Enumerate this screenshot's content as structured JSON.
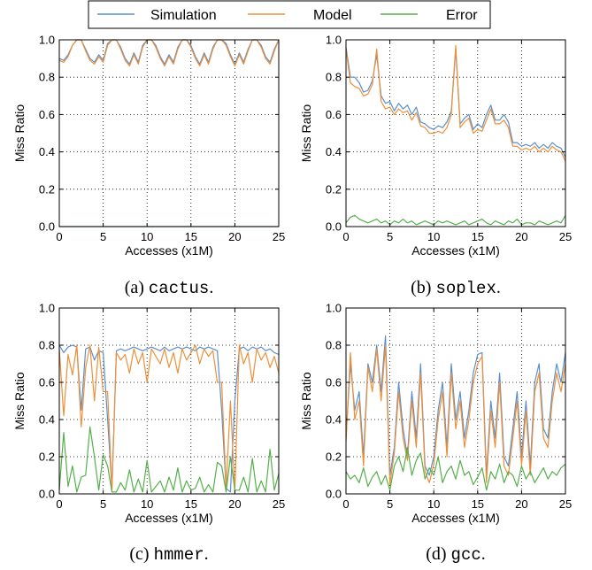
{
  "legend": {
    "entries": [
      {
        "label": "Simulation",
        "color": "#5b8fcc"
      },
      {
        "label": "Model",
        "color": "#ee8f3a"
      },
      {
        "label": "Error",
        "color": "#55b04b"
      }
    ]
  },
  "chart_data": [
    {
      "type": "line",
      "caption_prefix": "(a) ",
      "caption_name": "cactus",
      "caption_suffix": ".",
      "xlabel": "Accesses (x1M)",
      "ylabel": "Miss Ratio",
      "xlim": [
        0,
        25
      ],
      "ylim": [
        0,
        1.0
      ],
      "xticks": [
        0,
        5,
        10,
        15,
        20,
        25
      ],
      "yticks": [
        0.0,
        0.2,
        0.4,
        0.6,
        0.8,
        1.0
      ],
      "grid": true,
      "x": [
        0,
        0.5,
        1,
        1.5,
        2,
        2.5,
        3,
        3.5,
        4,
        4.5,
        5,
        5.5,
        6,
        6.5,
        7,
        7.5,
        8,
        8.5,
        9,
        9.5,
        10,
        10.5,
        11,
        11.5,
        12,
        12.5,
        13,
        13.5,
        14,
        14.5,
        15,
        15.5,
        16,
        16.5,
        17,
        17.5,
        18,
        18.5,
        19,
        19.5,
        20,
        20.5,
        21,
        21.5,
        22,
        22.5,
        23,
        23.5,
        24,
        24.5,
        25
      ],
      "series": [
        {
          "name": "Simulation",
          "values": [
            0.9,
            0.89,
            0.92,
            0.97,
            1.0,
            1.0,
            0.95,
            0.9,
            0.88,
            0.92,
            0.89,
            0.98,
            1.0,
            1.0,
            0.96,
            0.9,
            0.87,
            0.93,
            0.88,
            0.97,
            1.0,
            1.0,
            0.97,
            0.91,
            0.87,
            0.92,
            0.88,
            0.96,
            1.0,
            1.0,
            0.97,
            0.91,
            0.87,
            0.93,
            0.88,
            0.96,
            1.0,
            1.0,
            0.98,
            0.92,
            0.87,
            0.93,
            0.88,
            0.95,
            1.0,
            1.0,
            0.97,
            0.91,
            0.88,
            0.95,
            1.0
          ]
        },
        {
          "name": "Model",
          "values": [
            0.89,
            0.88,
            0.91,
            0.97,
            1.0,
            1.0,
            0.94,
            0.89,
            0.87,
            0.91,
            0.88,
            0.97,
            1.0,
            1.0,
            0.95,
            0.89,
            0.86,
            0.92,
            0.87,
            0.96,
            1.0,
            1.0,
            0.96,
            0.9,
            0.86,
            0.91,
            0.87,
            0.95,
            1.0,
            1.0,
            0.96,
            0.9,
            0.86,
            0.92,
            0.87,
            0.95,
            1.0,
            1.0,
            0.97,
            0.91,
            0.86,
            0.92,
            0.87,
            0.94,
            1.0,
            1.0,
            0.96,
            0.9,
            0.87,
            0.94,
            1.0
          ]
        },
        {
          "name": "Error",
          "values": [
            0.0,
            0.0,
            0.0,
            0.0,
            0.0,
            0.0,
            0.0,
            0.0,
            0.0,
            0.0,
            0.0,
            0.0,
            0.0,
            0.0,
            0.0,
            0.0,
            0.0,
            0.0,
            0.0,
            0.0,
            0.0,
            0.0,
            0.0,
            0.0,
            0.0,
            0.0,
            0.0,
            0.0,
            0.0,
            0.0,
            0.0,
            0.0,
            0.0,
            0.0,
            0.0,
            0.0,
            0.0,
            0.0,
            0.0,
            0.0,
            0.0,
            0.0,
            0.0,
            0.0,
            0.0,
            0.0,
            0.0,
            0.0,
            0.0,
            0.0,
            0.0
          ]
        }
      ]
    },
    {
      "type": "line",
      "caption_prefix": "(b) ",
      "caption_name": "soplex",
      "caption_suffix": ".",
      "xlabel": "Accesses (x1M)",
      "ylabel": "Miss Ratio",
      "xlim": [
        0,
        25
      ],
      "ylim": [
        0,
        1.0
      ],
      "xticks": [
        0,
        5,
        10,
        15,
        20,
        25
      ],
      "yticks": [
        0.0,
        0.2,
        0.4,
        0.6,
        0.8,
        1.0
      ],
      "grid": true,
      "x": [
        0,
        0.5,
        1,
        1.5,
        2,
        2.5,
        3,
        3.5,
        4,
        4.5,
        5,
        5.5,
        6,
        6.5,
        7,
        7.5,
        8,
        8.5,
        9,
        9.5,
        10,
        10.5,
        11,
        11.5,
        12,
        12.5,
        13,
        13.5,
        14,
        14.5,
        15,
        15.5,
        16,
        16.5,
        17,
        17.5,
        18,
        18.5,
        19,
        19.5,
        20,
        20.5,
        21,
        21.5,
        22,
        22.5,
        23,
        23.5,
        24,
        24.5,
        25
      ],
      "series": [
        {
          "name": "Simulation",
          "values": [
            0.96,
            0.8,
            0.8,
            0.77,
            0.72,
            0.73,
            0.78,
            0.92,
            0.7,
            0.66,
            0.67,
            0.62,
            0.66,
            0.63,
            0.65,
            0.6,
            0.64,
            0.56,
            0.55,
            0.53,
            0.52,
            0.54,
            0.53,
            0.56,
            0.62,
            0.95,
            0.55,
            0.58,
            0.6,
            0.52,
            0.55,
            0.53,
            0.6,
            0.65,
            0.57,
            0.57,
            0.6,
            0.56,
            0.45,
            0.45,
            0.43,
            0.44,
            0.43,
            0.45,
            0.42,
            0.44,
            0.42,
            0.45,
            0.43,
            0.42,
            0.37
          ]
        },
        {
          "name": "Model",
          "values": [
            0.95,
            0.77,
            0.75,
            0.74,
            0.7,
            0.71,
            0.76,
            0.95,
            0.67,
            0.63,
            0.64,
            0.6,
            0.63,
            0.61,
            0.62,
            0.57,
            0.61,
            0.54,
            0.53,
            0.5,
            0.5,
            0.51,
            0.5,
            0.53,
            0.6,
            0.97,
            0.53,
            0.56,
            0.58,
            0.5,
            0.52,
            0.51,
            0.57,
            0.63,
            0.55,
            0.55,
            0.57,
            0.53,
            0.43,
            0.43,
            0.41,
            0.42,
            0.41,
            0.43,
            0.4,
            0.42,
            0.4,
            0.43,
            0.41,
            0.4,
            0.35
          ]
        },
        {
          "name": "Error",
          "values": [
            0.02,
            0.05,
            0.06,
            0.04,
            0.03,
            0.02,
            0.03,
            0.04,
            0.02,
            0.03,
            0.01,
            0.03,
            0.02,
            0.04,
            0.02,
            0.03,
            0.01,
            0.02,
            0.03,
            0.02,
            0.01,
            0.03,
            0.02,
            0.03,
            0.02,
            0.01,
            0.02,
            0.03,
            0.01,
            0.02,
            0.03,
            0.04,
            0.02,
            0.01,
            0.03,
            0.02,
            0.01,
            0.03,
            0.02,
            0.04,
            0.01,
            0.02,
            0.02,
            0.01,
            0.03,
            0.02,
            0.01,
            0.02,
            0.03,
            0.02,
            0.06
          ]
        }
      ]
    },
    {
      "type": "line",
      "caption_prefix": "(c) ",
      "caption_name": "hmmer",
      "caption_suffix": ".",
      "xlabel": "Accesses (x1M)",
      "ylabel": "Miss Ratio",
      "xlim": [
        0,
        25
      ],
      "ylim": [
        0,
        1.0
      ],
      "xticks": [
        0,
        5,
        10,
        15,
        20,
        25
      ],
      "yticks": [
        0.0,
        0.2,
        0.4,
        0.6,
        0.8,
        1.0
      ],
      "grid": true,
      "x": [
        0,
        0.5,
        1,
        1.5,
        2,
        2.5,
        3,
        3.5,
        4,
        4.5,
        5,
        5.5,
        6,
        6.5,
        7,
        7.5,
        8,
        8.5,
        9,
        9.5,
        10,
        10.5,
        11,
        11.5,
        12,
        12.5,
        13,
        13.5,
        14,
        14.5,
        15,
        15.5,
        16,
        16.5,
        17,
        17.5,
        18,
        18.5,
        19,
        19.5,
        20,
        20.5,
        21,
        21.5,
        22,
        22.5,
        23,
        23.5,
        24,
        24.5,
        25
      ],
      "series": [
        {
          "name": "Simulation",
          "values": [
            0.8,
            0.76,
            0.79,
            0.8,
            0.79,
            0.45,
            0.78,
            0.79,
            0.72,
            0.77,
            0.76,
            0.4,
            0.03,
            0.77,
            0.78,
            0.77,
            0.78,
            0.79,
            0.78,
            0.77,
            0.78,
            0.79,
            0.78,
            0.77,
            0.79,
            0.77,
            0.78,
            0.79,
            0.78,
            0.79,
            0.78,
            0.77,
            0.79,
            0.78,
            0.79,
            0.78,
            0.77,
            0.45,
            0.03,
            0.01,
            0.5,
            0.78,
            0.79,
            0.77,
            0.79,
            0.78,
            0.79,
            0.77,
            0.78,
            0.76,
            0.75
          ]
        },
        {
          "name": "Model",
          "values": [
            0.78,
            0.42,
            0.75,
            0.64,
            0.8,
            0.36,
            0.68,
            0.8,
            0.5,
            0.79,
            0.55,
            0.55,
            0.02,
            0.76,
            0.72,
            0.75,
            0.65,
            0.78,
            0.7,
            0.76,
            0.6,
            0.78,
            0.74,
            0.7,
            0.78,
            0.68,
            0.76,
            0.65,
            0.78,
            0.72,
            0.76,
            0.8,
            0.7,
            0.78,
            0.74,
            0.77,
            0.6,
            0.6,
            0.03,
            0.5,
            0.01,
            0.8,
            0.7,
            0.76,
            0.6,
            0.78,
            0.72,
            0.76,
            0.68,
            0.74,
            0.65
          ]
        },
        {
          "name": "Error",
          "values": [
            0.02,
            0.33,
            0.04,
            0.15,
            0.01,
            0.09,
            0.1,
            0.36,
            0.2,
            0.02,
            0.21,
            0.15,
            0.01,
            0.01,
            0.06,
            0.02,
            0.13,
            0.01,
            0.08,
            0.01,
            0.18,
            0.01,
            0.04,
            0.07,
            0.01,
            0.09,
            0.02,
            0.14,
            0.01,
            0.07,
            0.02,
            0.03,
            0.09,
            0.01,
            0.05,
            0.01,
            0.17,
            0.15,
            0.01,
            0.2,
            0.02,
            0.02,
            0.09,
            0.01,
            0.19,
            0.01,
            0.07,
            0.01,
            0.24,
            0.02,
            0.11
          ]
        }
      ]
    },
    {
      "type": "line",
      "caption_prefix": "(d) ",
      "caption_name": "gcc",
      "caption_suffix": ".",
      "xlabel": "Accesses (x1M)",
      "ylabel": "Miss Ratio",
      "xlim": [
        0,
        25
      ],
      "ylim": [
        0,
        1.0
      ],
      "xticks": [
        0,
        5,
        10,
        15,
        20,
        25
      ],
      "yticks": [
        0.0,
        0.2,
        0.4,
        0.6,
        0.8,
        1.0
      ],
      "grid": true,
      "x": [
        0,
        0.5,
        1,
        1.5,
        2,
        2.5,
        3,
        3.5,
        4,
        4.5,
        5,
        5.5,
        6,
        6.5,
        7,
        7.5,
        8,
        8.5,
        9,
        9.5,
        10,
        10.5,
        11,
        11.5,
        12,
        12.5,
        13,
        13.5,
        14,
        14.5,
        15,
        15.5,
        16,
        16.5,
        17,
        17.5,
        18,
        18.5,
        19,
        19.5,
        20,
        20.5,
        21,
        21.5,
        22,
        22.5,
        23,
        23.5,
        24,
        24.5,
        25
      ],
      "series": [
        {
          "name": "Simulation",
          "values": [
            0.3,
            0.7,
            0.45,
            0.55,
            0.2,
            0.7,
            0.6,
            0.8,
            0.55,
            0.85,
            0.1,
            0.25,
            0.6,
            0.35,
            0.2,
            0.55,
            0.3,
            0.7,
            0.15,
            0.1,
            0.2,
            0.45,
            0.6,
            0.25,
            0.7,
            0.4,
            0.55,
            0.3,
            0.45,
            0.65,
            0.75,
            0.76,
            0.1,
            0.5,
            0.3,
            0.65,
            0.2,
            0.15,
            0.35,
            0.55,
            0.2,
            0.5,
            0.15,
            0.6,
            0.7,
            0.35,
            0.3,
            0.55,
            0.7,
            0.6,
            0.76
          ]
        },
        {
          "name": "Model",
          "values": [
            0.28,
            0.76,
            0.4,
            0.5,
            0.15,
            0.68,
            0.55,
            0.78,
            0.5,
            0.8,
            0.05,
            0.22,
            0.55,
            0.3,
            0.18,
            0.5,
            0.25,
            0.65,
            0.12,
            0.06,
            0.16,
            0.4,
            0.55,
            0.2,
            0.65,
            0.35,
            0.5,
            0.25,
            0.4,
            0.6,
            0.7,
            0.74,
            0.06,
            0.45,
            0.25,
            0.6,
            0.15,
            0.1,
            0.3,
            0.5,
            0.15,
            0.45,
            0.1,
            0.55,
            0.65,
            0.3,
            0.25,
            0.5,
            0.65,
            0.55,
            0.7
          ]
        },
        {
          "name": "Error",
          "values": [
            0.12,
            0.08,
            0.1,
            0.06,
            0.14,
            0.04,
            0.09,
            0.12,
            0.05,
            0.1,
            0.02,
            0.15,
            0.2,
            0.12,
            0.25,
            0.1,
            0.18,
            0.22,
            0.08,
            0.14,
            0.1,
            0.2,
            0.06,
            0.12,
            0.15,
            0.08,
            0.18,
            0.1,
            0.12,
            0.05,
            0.09,
            0.14,
            0.02,
            0.12,
            0.08,
            0.16,
            0.06,
            0.12,
            0.1,
            0.04,
            0.15,
            0.08,
            0.12,
            0.06,
            0.1,
            0.14,
            0.08,
            0.12,
            0.1,
            0.14,
            0.16
          ]
        }
      ]
    }
  ]
}
